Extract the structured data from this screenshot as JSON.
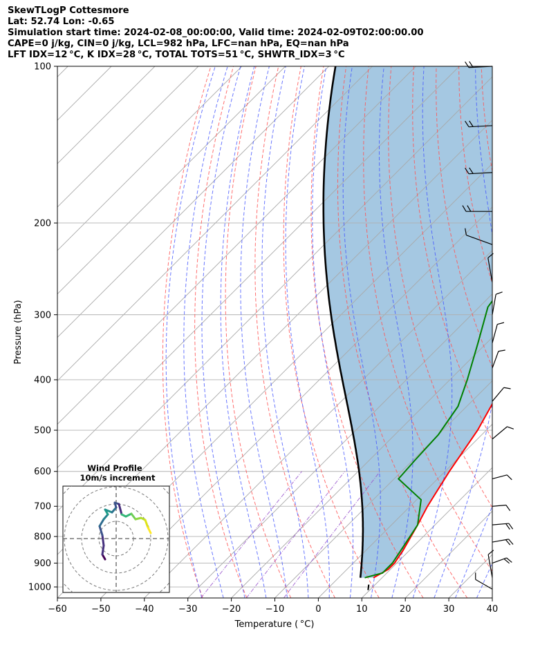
{
  "header": {
    "line1": "SkewTLogP Cottesmore",
    "line2": "Lat: 52.74   Lon: -0.65",
    "line3": "Simulation start time: 2024-02-08_00:00:00, Valid time: 2024-02-09T02:00:00.00",
    "line4": "CAPE=0 j/kg, CIN=0 j/kg, LCL=982 hPa, LFC=nan hPa, EQ=nan hPa",
    "line5": "LFT IDX=12 °C, K IDX=28 °C, TOTAL TOTS=51 °C, SHWTR_IDX=3 °C"
  },
  "chart_data": {
    "type": "line",
    "subtype": "skew-T log-P diagram",
    "xlabel": "Temperature ( °C)",
    "ylabel": "Pressure (hPa)",
    "xlim": [
      -60,
      40
    ],
    "ylim": [
      1050,
      100
    ],
    "y_scale": "log",
    "x_ticks": [
      "−60",
      "−50",
      "−40",
      "−30",
      "−20",
      "−10",
      "0",
      "10",
      "20",
      "30",
      "40"
    ],
    "y_ticks": [
      "100",
      "200",
      "300",
      "400",
      "500",
      "600",
      "700",
      "800",
      "900",
      "1000"
    ],
    "grid": true,
    "series": [
      {
        "role": "temperature",
        "color": "#ff0000",
        "points": [
          [
            8.0,
            960
          ],
          [
            9.5,
            925
          ],
          [
            9.5,
            900
          ],
          [
            8.5,
            850
          ],
          [
            6.0,
            760
          ],
          [
            4.0,
            700
          ],
          [
            1.0,
            600
          ],
          [
            -2.0,
            500
          ],
          [
            -6.0,
            420
          ],
          [
            -12.0,
            350
          ],
          [
            -16.0,
            300
          ],
          [
            -19.0,
            270
          ],
          [
            -21.0,
            250
          ],
          [
            -18.0,
            220
          ],
          [
            -16.5,
            200
          ],
          [
            -15.0,
            175
          ],
          [
            -14.0,
            150
          ],
          [
            -12.5,
            130
          ],
          [
            -11.0,
            115
          ],
          [
            -10.0,
            100
          ]
        ]
      },
      {
        "role": "dewpoint",
        "color": "#008000",
        "points": [
          [
            6.0,
            960
          ],
          [
            9.0,
            940
          ],
          [
            9.0,
            900
          ],
          [
            8.0,
            850
          ],
          [
            6.0,
            760
          ],
          [
            1.0,
            680
          ],
          [
            -9.0,
            620
          ],
          [
            -9.5,
            570
          ],
          [
            -10.0,
            510
          ],
          [
            -12.0,
            450
          ],
          [
            -16.0,
            400
          ],
          [
            -22.0,
            340
          ],
          [
            -28.0,
            290
          ],
          [
            -29.5,
            260
          ],
          [
            -33.0,
            230
          ],
          [
            -36.0,
            200
          ],
          [
            -40.0,
            170
          ],
          [
            -41.0,
            150
          ],
          [
            -37.0,
            130
          ],
          [
            -33.0,
            115
          ],
          [
            -30.0,
            100
          ]
        ]
      },
      {
        "role": "parcel profile",
        "color": "#000000",
        "points": [
          [
            5.0,
            960
          ],
          [
            5.0,
            980
          ]
        ]
      }
    ],
    "annotations": [
      "CAPE (shaded area between parcel profile and temperature)"
    ],
    "reference_lines": [
      "dry adiabats (red dashed)",
      "moist adiabats (blue dashed)",
      "mixing ratio lines (purple dash-dot)",
      "isotherms (gray)"
    ],
    "wind_barbs": "right side, from surface to 100 hPa"
  },
  "inset": {
    "title_line1": "Wind Profile",
    "title_line2": "10m/s increment"
  },
  "colors": {
    "temperature": "#ff0000",
    "dewpoint": "#008000",
    "parcel": "#000000",
    "cape_fill": "#a5c8e2",
    "dry_adiabat": "#ff5555",
    "moist_adiabat": "#4455ff",
    "mixing_ratio": "#9955cc"
  }
}
